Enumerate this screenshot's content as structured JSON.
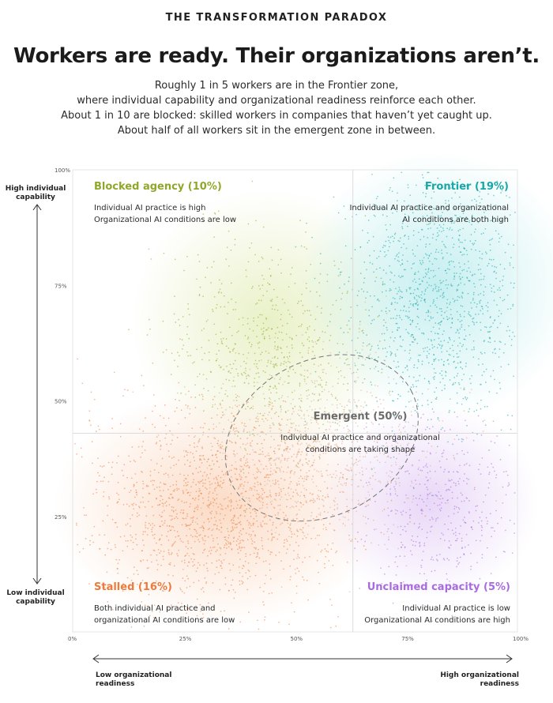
{
  "header": {
    "eyebrow": "THE TRANSFORMATION PARADOX",
    "title": "Workers are ready. Their organizations aren’t.",
    "subtitle_lines": [
      "Roughly 1 in 5 workers are in the Frontier zone,",
      "where individual capability and organizational readiness reinforce each other.",
      "About 1 in 10 are blocked: skilled workers in companies that haven’t yet caught up.",
      "About half of all workers sit in the emergent zone in between."
    ]
  },
  "colors": {
    "blocked": "#8fa82a",
    "frontier": "#19a6a6",
    "emergent": "#6b6b6b",
    "stalled": "#ee7a3c",
    "unclaimed": "#a86be0"
  },
  "axes": {
    "y_high_label": "High individual capability",
    "y_low_label": "Low individual capability",
    "x_low_label": "Low organizational readiness",
    "x_high_label": "High organizational readiness"
  },
  "chart_data": {
    "type": "scatter",
    "xlim": [
      0,
      100
    ],
    "ylim": [
      0,
      100
    ],
    "x_ticks": [
      "0%",
      "25%",
      "50%",
      "75%",
      "100%"
    ],
    "y_ticks": [
      "25%",
      "50%",
      "75%",
      "100%"
    ],
    "divider_x": 63,
    "divider_y": 43,
    "zones": [
      {
        "id": "blocked",
        "name": "Blocked agency (10%)",
        "share": 10,
        "lines": [
          "Individual AI practice is high",
          "Organizational AI conditions are low"
        ]
      },
      {
        "id": "frontier",
        "name": "Frontier (19%)",
        "share": 19,
        "lines": [
          "Individual AI practice and organizational",
          "AI conditions are both high"
        ]
      },
      {
        "id": "emergent",
        "name": "Emergent (50%)",
        "share": 50,
        "lines": [
          "Individual AI practice and organizational",
          "conditions are taking shape"
        ]
      },
      {
        "id": "stalled",
        "name": "Stalled (16%)",
        "share": 16,
        "lines": [
          "Both individual AI practice and",
          "organizational AI conditions are low"
        ]
      },
      {
        "id": "unclaimed",
        "name": "Unclaimed capacity (5%)",
        "share": 5,
        "lines": [
          "Individual AI practice is low",
          "Organizational AI conditions are high"
        ]
      }
    ]
  }
}
